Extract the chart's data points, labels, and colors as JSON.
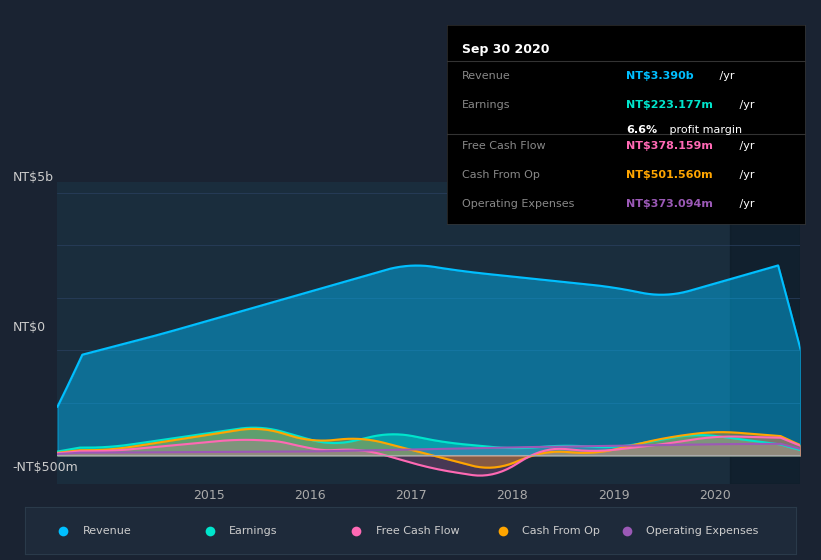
{
  "bg_color": "#1a2332",
  "plot_bg_color": "#1a2d3d",
  "y_label_top": "NT$5b",
  "y_label_zero": "NT$0",
  "y_label_neg": "-NT$500m",
  "x_ticks": [
    "2015",
    "2016",
    "2017",
    "2018",
    "2019",
    "2020"
  ],
  "colors": {
    "revenue": "#00bfff",
    "earnings": "#00e5cc",
    "free_cash_flow": "#ff69b4",
    "cash_from_op": "#ffa500",
    "operating_expenses": "#9b59b6"
  },
  "tooltip": {
    "date": "Sep 30 2020",
    "revenue_label": "Revenue",
    "revenue_val": "NT$3.390b",
    "earnings_label": "Earnings",
    "earnings_val": "NT$223.177m",
    "margin_val": "6.6%",
    "fcf_label": "Free Cash Flow",
    "fcf_val": "NT$378.159m",
    "cashop_label": "Cash From Op",
    "cashop_val": "NT$501.560m",
    "opex_label": "Operating Expenses",
    "opex_val": "NT$373.094m"
  },
  "legend": [
    {
      "label": "Revenue",
      "color": "#00bfff"
    },
    {
      "label": "Earnings",
      "color": "#00e5cc"
    },
    {
      "label": "Free Cash Flow",
      "color": "#ff69b4"
    },
    {
      "label": "Cash From Op",
      "color": "#ffa500"
    },
    {
      "label": "Operating Expenses",
      "color": "#9b59b6"
    }
  ]
}
